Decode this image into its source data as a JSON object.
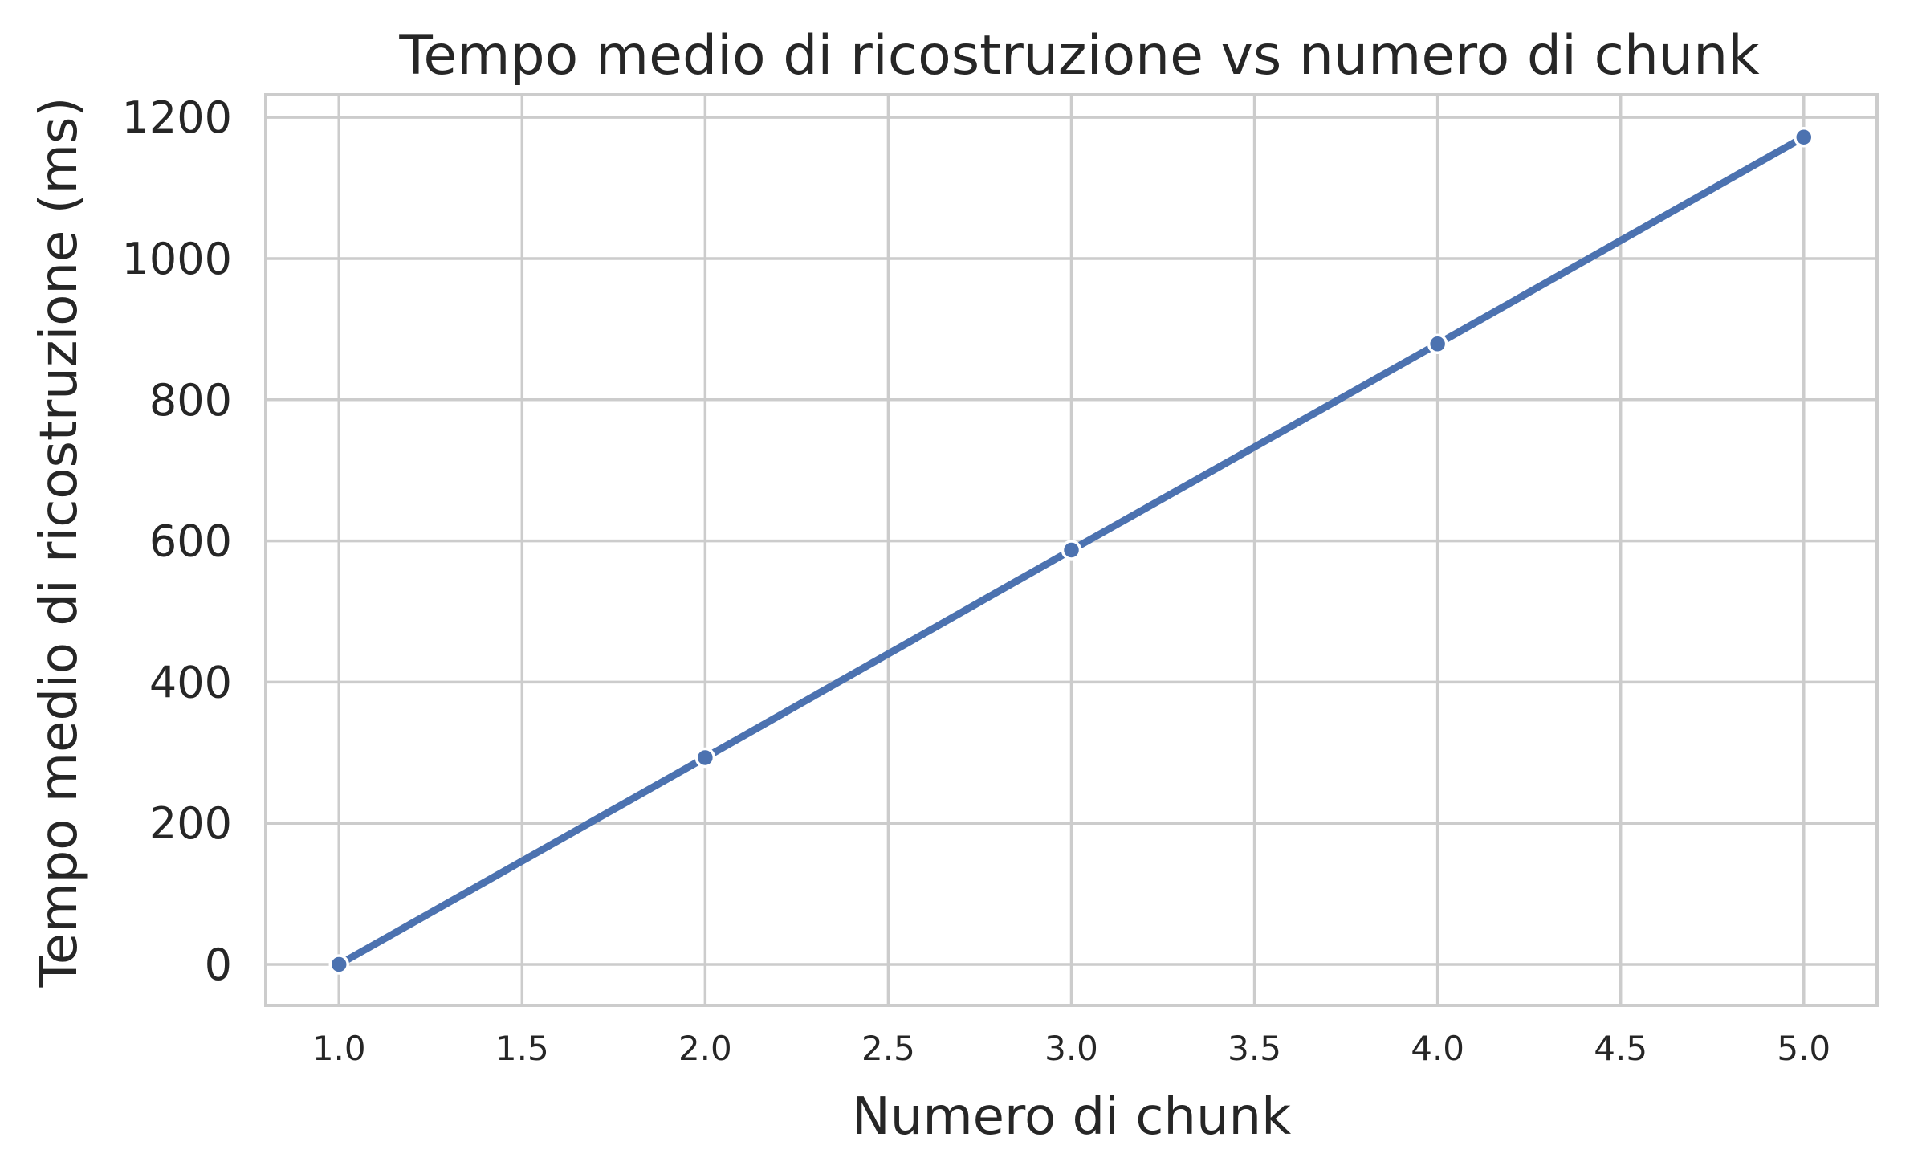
{
  "chart_data": {
    "type": "line",
    "title": "Tempo medio di ricostruzione vs numero di chunk",
    "xlabel": "Numero di chunk",
    "ylabel": "Tempo medio di ricostruzione (ms)",
    "x": [
      1.0,
      2.0,
      3.0,
      4.0,
      5.0
    ],
    "series": [
      {
        "values": [
          0,
          293,
          587,
          879,
          1172
        ]
      }
    ],
    "xlim": [
      0.8,
      5.2
    ],
    "ylim": [
      -58,
      1232
    ],
    "xticks": [
      1.0,
      1.5,
      2.0,
      2.5,
      3.0,
      3.5,
      4.0,
      4.5,
      5.0
    ],
    "xtick_labels": [
      "1.0",
      "1.5",
      "2.0",
      "2.5",
      "3.0",
      "3.5",
      "4.0",
      "4.5",
      "5.0"
    ],
    "yticks": [
      0,
      200,
      400,
      600,
      800,
      1000,
      1200
    ],
    "ytick_labels": [
      "0",
      "200",
      "400",
      "600",
      "800",
      "1000",
      "1200"
    ],
    "grid": true,
    "colors": {
      "line": "#4c72b0",
      "marker_edge": "#ffffff",
      "grid": "#cccccc",
      "spine": "#cccccc",
      "text": "#262626",
      "background": "#ffffff"
    }
  }
}
